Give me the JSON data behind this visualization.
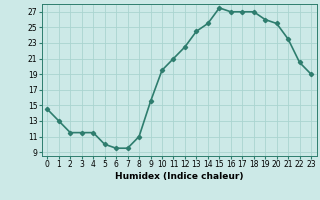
{
  "x": [
    0,
    1,
    2,
    3,
    4,
    5,
    6,
    7,
    8,
    9,
    10,
    11,
    12,
    13,
    14,
    15,
    16,
    17,
    18,
    19,
    20,
    21,
    22,
    23
  ],
  "y": [
    14.5,
    13.0,
    11.5,
    11.5,
    11.5,
    10.0,
    9.5,
    9.5,
    11.0,
    15.5,
    19.5,
    21.0,
    22.5,
    24.5,
    25.5,
    27.5,
    27.0,
    27.0,
    27.0,
    26.0,
    25.5,
    23.5,
    20.5,
    19.0
  ],
  "line_color": "#2e7d6e",
  "marker": "D",
  "marker_size": 2.2,
  "bg_color": "#cce9e7",
  "grid_color": "#aad4d0",
  "xlabel": "Humidex (Indice chaleur)",
  "xlim": [
    -0.5,
    23.5
  ],
  "ylim": [
    8.5,
    28.0
  ],
  "yticks": [
    9,
    11,
    13,
    15,
    17,
    19,
    21,
    23,
    25,
    27
  ],
  "xticks": [
    0,
    1,
    2,
    3,
    4,
    5,
    6,
    7,
    8,
    9,
    10,
    11,
    12,
    13,
    14,
    15,
    16,
    17,
    18,
    19,
    20,
    21,
    22,
    23
  ],
  "xtick_labels": [
    "0",
    "1",
    "2",
    "3",
    "4",
    "5",
    "6",
    "7",
    "8",
    "9",
    "10",
    "11",
    "12",
    "13",
    "14",
    "15",
    "16",
    "17",
    "18",
    "19",
    "20",
    "21",
    "22",
    "23"
  ],
  "tick_fontsize": 5.5,
  "label_fontsize": 6.5,
  "line_width": 1.2
}
